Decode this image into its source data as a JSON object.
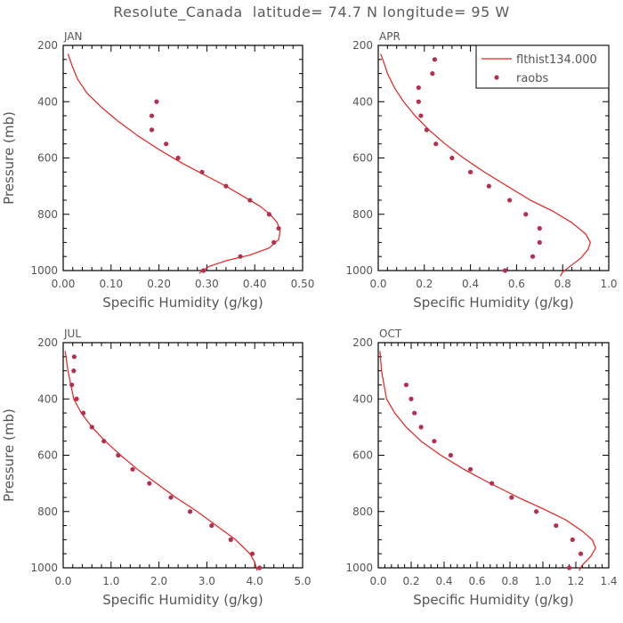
{
  "figure": {
    "title": "Resolute_Canada  latitude= 74.7 N longitude= 95 W"
  },
  "colors": {
    "model_line": "#e8211e",
    "obs_marker": "#b5304f",
    "axis": "#000000",
    "text": "#555555"
  },
  "chart_data": [
    {
      "type": "line",
      "panel_label": "JAN",
      "xlabel": "Specific Humidity (g/kg)",
      "ylabel": "Pressure (mb)",
      "xlim": [
        0,
        0.5
      ],
      "ylim": [
        1000,
        200
      ],
      "y_inverted": true,
      "xticks": [
        "0.00",
        "0.10",
        "0.20",
        "0.30",
        "0.40",
        "0.50"
      ],
      "yticks": [
        "200",
        "400",
        "600",
        "800",
        "1000"
      ],
      "legend": null,
      "series": [
        {
          "name": "",
          "kind": "line",
          "x": [
            0.284,
            0.292,
            0.305,
            0.34,
            0.39,
            0.43,
            0.45,
            0.453,
            0.447,
            0.432,
            0.41,
            0.38,
            0.34,
            0.295,
            0.25,
            0.2,
            0.155,
            0.115,
            0.08,
            0.05,
            0.03,
            0.018,
            0.01
          ],
          "y": [
            1010,
            1000,
            985,
            965,
            945,
            920,
            890,
            860,
            830,
            800,
            770,
            740,
            700,
            660,
            620,
            570,
            520,
            470,
            420,
            370,
            320,
            270,
            230
          ]
        },
        {
          "name": "",
          "kind": "scatter",
          "x": [
            0.293,
            0.37,
            0.44,
            0.45,
            0.43,
            0.39,
            0.34,
            0.29,
            0.24,
            0.215,
            0.185,
            0.185,
            0.195
          ],
          "y": [
            1000,
            950,
            900,
            850,
            800,
            750,
            700,
            650,
            600,
            550,
            500,
            450,
            400
          ]
        }
      ]
    },
    {
      "type": "line",
      "panel_label": "APR",
      "xlabel": "Specific Humidity (g/kg)",
      "ylabel": "",
      "xlim": [
        0,
        1.0
      ],
      "ylim": [
        1000,
        200
      ],
      "y_inverted": true,
      "xticks": [
        "0.0",
        "0.2",
        "0.4",
        "0.6",
        "0.8",
        "1.0"
      ],
      "yticks": [
        "200",
        "400",
        "600",
        "800",
        "1000"
      ],
      "legend": {
        "placement": "top-right",
        "entries": [
          {
            "label": "flthist134.000",
            "kind": "line"
          },
          {
            "label": "raobs",
            "kind": "marker"
          }
        ]
      },
      "series": [
        {
          "name": "flthist134.000",
          "kind": "line",
          "x": [
            0.79,
            0.8,
            0.84,
            0.88,
            0.91,
            0.92,
            0.9,
            0.84,
            0.76,
            0.66,
            0.56,
            0.46,
            0.37,
            0.29,
            0.22,
            0.16,
            0.11,
            0.07,
            0.04,
            0.02,
            0.01
          ],
          "y": [
            1020,
            1005,
            980,
            955,
            925,
            900,
            870,
            830,
            790,
            750,
            700,
            650,
            600,
            550,
            500,
            450,
            400,
            350,
            300,
            250,
            230
          ]
        },
        {
          "name": "raobs",
          "kind": "scatter",
          "x": [
            0.55,
            0.67,
            0.7,
            0.7,
            0.64,
            0.57,
            0.48,
            0.4,
            0.32,
            0.25,
            0.21,
            0.185,
            0.175,
            0.175,
            0.235,
            0.245
          ],
          "y": [
            1000,
            950,
            900,
            850,
            800,
            750,
            700,
            650,
            600,
            550,
            500,
            450,
            400,
            350,
            300,
            250
          ]
        }
      ]
    },
    {
      "type": "line",
      "panel_label": "JUL",
      "xlabel": "Specific Humidity (g/kg)",
      "ylabel": "Pressure (mb)",
      "xlim": [
        0,
        5.0
      ],
      "ylim": [
        1000,
        200
      ],
      "y_inverted": true,
      "xticks": [
        "0.0",
        "1.0",
        "2.0",
        "3.0",
        "4.0",
        "5.0"
      ],
      "yticks": [
        "200",
        "400",
        "600",
        "800",
        "1000"
      ],
      "legend": null,
      "series": [
        {
          "name": "",
          "kind": "line",
          "x": [
            4.05,
            4.0,
            3.9,
            3.6,
            3.2,
            2.8,
            2.35,
            1.95,
            1.55,
            1.2,
            0.88,
            0.6,
            0.38,
            0.22,
            0.1,
            0.04
          ],
          "y": [
            1010,
            980,
            950,
            900,
            850,
            800,
            750,
            700,
            650,
            600,
            550,
            500,
            450,
            400,
            300,
            230
          ]
        },
        {
          "name": "",
          "kind": "scatter",
          "x": [
            4.1,
            3.95,
            3.5,
            3.1,
            2.65,
            2.25,
            1.8,
            1.45,
            1.15,
            0.85,
            0.6,
            0.42,
            0.28,
            0.18,
            0.22,
            0.23
          ],
          "y": [
            1000,
            950,
            900,
            850,
            800,
            750,
            700,
            650,
            600,
            550,
            500,
            450,
            400,
            350,
            300,
            250
          ]
        }
      ]
    },
    {
      "type": "line",
      "panel_label": "OCT",
      "xlabel": "Specific Humidity (g/kg)",
      "ylabel": "",
      "xlim": [
        0,
        1.4
      ],
      "ylim": [
        1000,
        200
      ],
      "y_inverted": true,
      "xticks": [
        "0.0",
        "0.2",
        "0.4",
        "0.6",
        "0.8",
        "1.0",
        "1.2",
        "1.4"
      ],
      "yticks": [
        "200",
        "400",
        "600",
        "800",
        "1000"
      ],
      "legend": null,
      "series": [
        {
          "name": "",
          "kind": "line",
          "x": [
            1.22,
            1.24,
            1.29,
            1.32,
            1.3,
            1.24,
            1.14,
            1.0,
            0.85,
            0.68,
            0.52,
            0.38,
            0.26,
            0.17,
            0.1,
            0.05,
            0.02,
            0.01
          ],
          "y": [
            1010,
            990,
            960,
            930,
            900,
            870,
            830,
            790,
            750,
            700,
            650,
            600,
            550,
            500,
            450,
            400,
            300,
            230
          ]
        },
        {
          "name": "",
          "kind": "scatter",
          "x": [
            1.16,
            1.23,
            1.18,
            1.08,
            0.96,
            0.81,
            0.69,
            0.56,
            0.44,
            0.34,
            0.26,
            0.22,
            0.2,
            0.17
          ],
          "y": [
            1000,
            950,
            900,
            850,
            800,
            750,
            700,
            650,
            600,
            550,
            500,
            450,
            400,
            350
          ]
        }
      ]
    }
  ]
}
